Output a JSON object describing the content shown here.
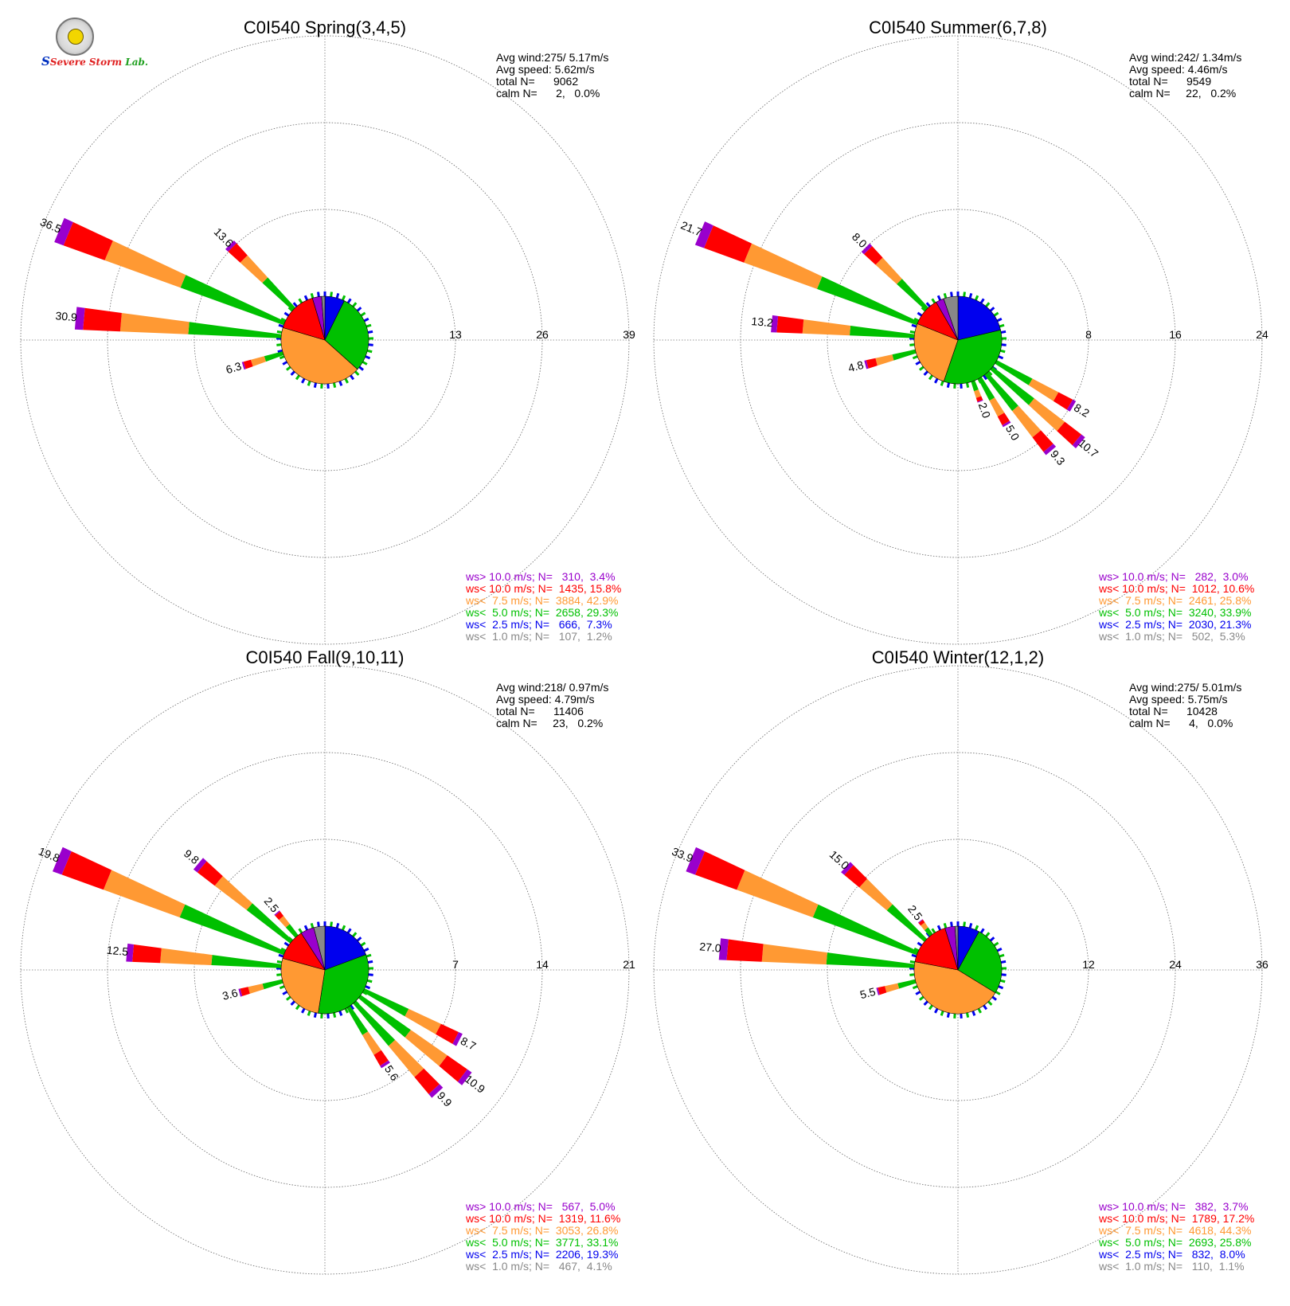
{
  "logo": {
    "text_parts": [
      "S",
      "Severe Storm",
      "Lab."
    ]
  },
  "chart_data": [
    {
      "type": "windrose",
      "title": "C0I540 Spring(3,4,5)",
      "stats": [
        "Avg wind:275/ 5.17m/s",
        "Avg speed: 5.62m/s",
        "total N=      9062",
        "calm N=      2,   0.0%"
      ],
      "rings": [
        13,
        26,
        39
      ],
      "ring_labels": [
        "13",
        "26",
        "39"
      ],
      "pie": [
        7.3,
        29.3,
        42.9,
        15.8,
        3.4,
        1.2
      ],
      "petals": [
        {
          "dir": 275,
          "total": 30.9,
          "label": "30.9"
        },
        {
          "dir": 292.5,
          "total": 36.5,
          "label": "36.5"
        },
        {
          "dir": 315,
          "total": 13.6,
          "label": "13.6"
        },
        {
          "dir": 252.5,
          "total": 6.3,
          "label": "6.3"
        }
      ],
      "legend": [
        "ws> 10.0 m/s; N=   310,  3.4%",
        "ws< 10.0 m/s; N=  1435, 15.8%",
        "ws<  7.5 m/s; N=  3884, 42.9%",
        "ws<  5.0 m/s; N=  2658, 29.3%",
        "ws<  2.5 m/s; N=   666,  7.3%",
        "ws<  1.0 m/s; N=   107,  1.2%"
      ]
    },
    {
      "type": "windrose",
      "title": "C0I540 Summer(6,7,8)",
      "stats": [
        "Avg wind:242/ 1.34m/s",
        "Avg speed: 4.46m/s",
        "total N=      9549",
        "calm N=     22,   0.2%"
      ],
      "rings": [
        8,
        16,
        24
      ],
      "ring_labels": [
        "8",
        "16",
        "24"
      ],
      "pie": [
        21.3,
        33.9,
        25.8,
        10.6,
        3.0,
        5.3
      ],
      "petals": [
        {
          "dir": 292.5,
          "total": 21.7,
          "label": "21.7"
        },
        {
          "dir": 275,
          "total": 13.2,
          "label": "13.2"
        },
        {
          "dir": 315,
          "total": 8.0,
          "label": "8.0"
        },
        {
          "dir": 255,
          "total": 4.8,
          "label": "4.8"
        },
        {
          "dir": 120,
          "total": 8.2,
          "label": "8.2"
        },
        {
          "dir": 130,
          "total": 10.7,
          "label": "10.7"
        },
        {
          "dir": 140,
          "total": 9.3,
          "label": "9.3"
        },
        {
          "dir": 150,
          "total": 5.0,
          "label": "5.0"
        },
        {
          "dir": 160,
          "total": 2.0,
          "label": "2.0"
        }
      ],
      "legend": [
        "ws> 10.0 m/s; N=   282,  3.0%",
        "ws< 10.0 m/s; N=  1012, 10.6%",
        "ws<  7.5 m/s; N=  2461, 25.8%",
        "ws<  5.0 m/s; N=  3240, 33.9%",
        "ws<  2.5 m/s; N=  2030, 21.3%",
        "ws<  1.0 m/s; N=   502,  5.3%"
      ]
    },
    {
      "type": "windrose",
      "title": "C0I540 Fall(9,10,11)",
      "stats": [
        "Avg wind:218/ 0.97m/s",
        "Avg speed: 4.79m/s",
        "total N=      11406",
        "calm N=     23,   0.2%"
      ],
      "rings": [
        7,
        14,
        21
      ],
      "ring_labels": [
        "7",
        "14",
        "21"
      ],
      "pie": [
        19.3,
        33.1,
        26.8,
        11.6,
        5.0,
        4.1
      ],
      "petals": [
        {
          "dir": 292.5,
          "total": 19.8,
          "label": "19.8"
        },
        {
          "dir": 275,
          "total": 12.5,
          "label": "12.5"
        },
        {
          "dir": 310,
          "total": 9.8,
          "label": "9.8"
        },
        {
          "dir": 320,
          "total": 2.5,
          "label": "2.5"
        },
        {
          "dir": 255,
          "total": 3.6,
          "label": "3.6"
        },
        {
          "dir": 117.5,
          "total": 8.7,
          "label": "8.7"
        },
        {
          "dir": 127.5,
          "total": 10.9,
          "label": "10.9"
        },
        {
          "dir": 137.5,
          "total": 9.9,
          "label": "9.9"
        },
        {
          "dir": 147.5,
          "total": 5.6,
          "label": "5.6"
        }
      ],
      "legend": [
        "ws> 10.0 m/s; N=   567,  5.0%",
        "ws< 10.0 m/s; N=  1319, 11.6%",
        "ws<  7.5 m/s; N=  3053, 26.8%",
        "ws<  5.0 m/s; N=  3771, 33.1%",
        "ws<  2.5 m/s; N=  2206, 19.3%",
        "ws<  1.0 m/s; N=   467,  4.1%"
      ]
    },
    {
      "type": "windrose",
      "title": "C0I540 Winter(12,1,2)",
      "stats": [
        "Avg wind:275/ 5.01m/s",
        "Avg speed: 5.75m/s",
        "total N=      10428",
        "calm N=      4,   0.0%"
      ],
      "rings": [
        12,
        24,
        36
      ],
      "ring_labels": [
        "12",
        "24",
        "36"
      ],
      "pie": [
        8.0,
        25.8,
        44.3,
        17.2,
        3.7,
        1.1
      ],
      "petals": [
        {
          "dir": 292.5,
          "total": 33.9,
          "label": "33.9"
        },
        {
          "dir": 275,
          "total": 27.0,
          "label": "27.0"
        },
        {
          "dir": 312.5,
          "total": 15.0,
          "label": "15.0"
        },
        {
          "dir": 322.5,
          "total": 2.5,
          "label": "2.5"
        },
        {
          "dir": 255,
          "total": 5.5,
          "label": "5.5"
        }
      ],
      "legend": [
        "ws> 10.0 m/s; N=   382,  3.7%",
        "ws< 10.0 m/s; N=  1789, 17.2%",
        "ws<  7.5 m/s; N=  4618, 44.3%",
        "ws<  5.0 m/s; N=  2693, 25.8%",
        "ws<  2.5 m/s; N=   832,  8.0%",
        "ws<  1.0 m/s; N=   110,  1.1%"
      ]
    }
  ],
  "colors": {
    "speed_classes": [
      "#0000ee",
      "#00c000",
      "#ff9933",
      "#ff0000",
      "#9900cc",
      "#888888"
    ],
    "legend_text": [
      "#9900cc",
      "#ff0000",
      "#ff9933",
      "#00c000",
      "#0000ee",
      "#888888"
    ]
  }
}
